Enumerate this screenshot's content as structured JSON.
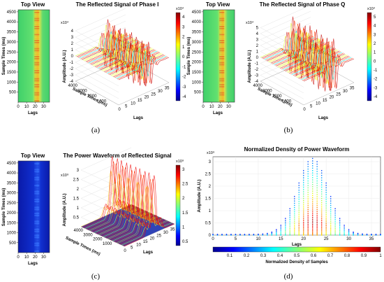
{
  "captions": [
    "(a)",
    "(b)",
    "(c)",
    "(d)"
  ],
  "chart_data": [
    {
      "type": "heatmap",
      "panel": "a-top",
      "title": "Top View",
      "xlabel": "Lags",
      "ylabel": "Sample Times (ms)",
      "xlim": [
        0,
        37
      ],
      "ylim": [
        0,
        4600
      ],
      "xticks": [
        0,
        10,
        20,
        30
      ],
      "yticks": [
        500,
        1000,
        1500,
        2000,
        2500,
        3000,
        3500,
        4000,
        4500
      ],
      "peak_lag": 22
    },
    {
      "type": "area",
      "panel": "a-3d",
      "title": "The Reflected Signal of Phase I",
      "zlabel": "Amplitude (A.U.)",
      "xlabel": "Lags",
      "ylabel": "Sample Times (ms)",
      "exponent": "x10⁴",
      "xticks": [
        0,
        5,
        10,
        15,
        20,
        25,
        30,
        35
      ],
      "yticks": [
        1000,
        2000,
        3000,
        4000
      ],
      "zticks": [
        4,
        3,
        2,
        1,
        0,
        -1,
        -2,
        -3,
        -4
      ],
      "colorbar": {
        "ticks": [
          4,
          3,
          2,
          1,
          0,
          -1,
          -2,
          -3,
          -4
        ],
        "exponent": "x10⁴"
      }
    },
    {
      "type": "heatmap",
      "panel": "b-top",
      "title": "Top View",
      "xlabel": "Lags",
      "ylabel": "Sample Times (ms)",
      "xlim": [
        0,
        37
      ],
      "ylim": [
        0,
        4600
      ],
      "xticks": [
        0,
        10,
        20,
        30
      ],
      "yticks": [
        500,
        1000,
        1500,
        2000,
        2500,
        3000,
        3500,
        4000,
        4500
      ],
      "peak_lag": 22
    },
    {
      "type": "area",
      "panel": "b-3d",
      "title": "The Reflected Signal of Phase Q",
      "zlabel": "Amplitude (A.U.)",
      "xlabel": "Lags",
      "ylabel": "Sample Times (ms)",
      "exponent": "x10⁴",
      "xticks": [
        0,
        5,
        10,
        15,
        20,
        25,
        30,
        35
      ],
      "yticks": [
        1000,
        2000,
        3000,
        4000
      ],
      "zticks": [
        5,
        4,
        3,
        2,
        1,
        0,
        -1,
        -2,
        -3,
        -4
      ],
      "colorbar": {
        "ticks": [
          5,
          4,
          3,
          2,
          1,
          0,
          -1,
          -2,
          -3,
          -4
        ],
        "exponent": "x10⁴"
      }
    },
    {
      "type": "heatmap",
      "panel": "c-top",
      "title": "Top View",
      "xlabel": "Lags",
      "ylabel": "Sample Times (ms)",
      "xlim": [
        0,
        37
      ],
      "ylim": [
        0,
        4600
      ],
      "xticks": [
        0,
        10,
        20,
        30
      ],
      "yticks": [
        500,
        1000,
        1500,
        2000,
        2500,
        3000,
        3500,
        4000,
        4500
      ],
      "peak_lag": 22
    },
    {
      "type": "area",
      "panel": "c-3d",
      "title": "The Power Waveform of Reflected Signal",
      "zlabel": "Amplitude (A.U.)",
      "xlabel": "Lags",
      "ylabel": "Sample Times (ms)",
      "exponent": "x10⁹",
      "xticks": [
        0,
        5,
        10,
        15,
        20,
        25,
        30,
        35
      ],
      "yticks": [
        1000,
        2000,
        3000,
        4000
      ],
      "zticks": [
        3,
        2.5,
        2,
        1.5,
        1,
        0.5
      ],
      "colorbar": {
        "ticks": [
          3,
          2.5,
          2,
          1.5,
          1,
          0.5
        ],
        "exponent": "x10⁹"
      }
    },
    {
      "type": "scatter",
      "panel": "d",
      "title": "Normalized Density of Power Waveform",
      "xlabel": "Lags",
      "ylabel": "Amplitude (A.U.)",
      "exponent": "x10⁹",
      "xlim": [
        0,
        37
      ],
      "ylim": [
        0,
        3.2
      ],
      "xticks": [
        0,
        5,
        10,
        15,
        20,
        25,
        30,
        35
      ],
      "yticks": [
        0,
        0.5,
        1,
        1.5,
        2,
        2.5,
        3
      ],
      "colorbar": {
        "label": "Normalized Density of Samples",
        "ticks": [
          0.1,
          0.2,
          0.3,
          0.4,
          0.5,
          0.6,
          0.7,
          0.8,
          0.9,
          1
        ]
      },
      "peak_lag": 22,
      "peak_value": 3.1
    }
  ]
}
